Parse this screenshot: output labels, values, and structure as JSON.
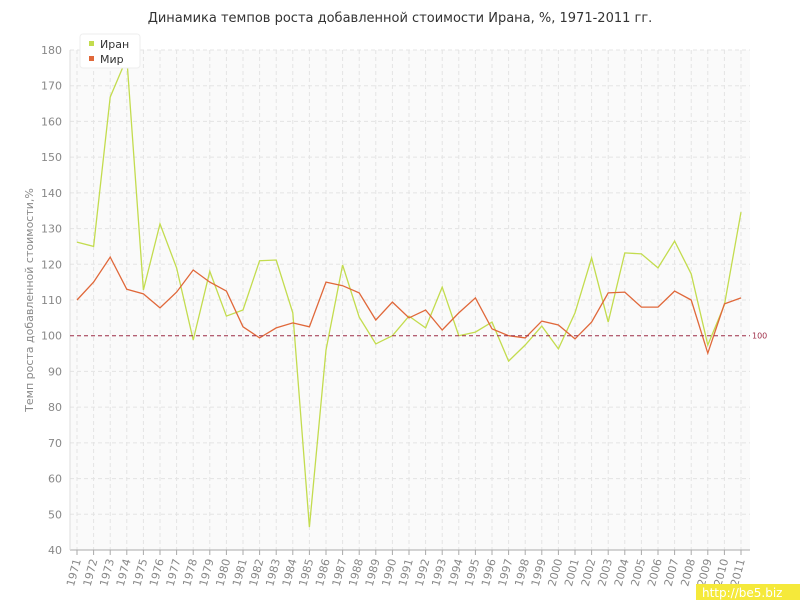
{
  "chart_data": {
    "type": "line",
    "title": "Динамика темпов роста добавленной стоимости Ирана, %, 1971-2011 гг.",
    "y_label": "Темп роста добавленной стоимости,%",
    "categories": [
      "1971",
      "1972",
      "1973",
      "1974",
      "1975",
      "1976",
      "1977",
      "1978",
      "1979",
      "1980",
      "1981",
      "1982",
      "1983",
      "1984",
      "1985",
      "1986",
      "1987",
      "1988",
      "1989",
      "1990",
      "1991",
      "1992",
      "1993",
      "1994",
      "1995",
      "1996",
      "1997",
      "1998",
      "1999",
      "2000",
      "2001",
      "2002",
      "2003",
      "2004",
      "2005",
      "2006",
      "2007",
      "2008",
      "2009",
      "2010",
      "2011"
    ],
    "series": [
      {
        "name": "Иран",
        "color": "#c3dc4e",
        "values": [
          126.2,
          125,
          166.8,
          177.8,
          112.8,
          131.3,
          119,
          98.8,
          118,
          105.5,
          107.2,
          121,
          121.2,
          106.4,
          46.4,
          96,
          119.8,
          105.2,
          97.7,
          100,
          105.5,
          102.2,
          113.6,
          100,
          101,
          103.8,
          92.9,
          97.4,
          102.7,
          96.3,
          106.4,
          121.8,
          103.8,
          123.2,
          122.9,
          119,
          126.5,
          117.3,
          97.4,
          108.6,
          134.6
        ]
      },
      {
        "name": "Мир",
        "color": "#e0683a",
        "values": [
          110,
          115,
          122,
          113,
          111.7,
          107.8,
          112.2,
          118.4,
          115,
          112.5,
          102.5,
          99.4,
          102.2,
          103.6,
          102.5,
          115,
          114,
          112,
          104.4,
          109.4,
          105,
          107.2,
          101.6,
          106.4,
          110.6,
          101.9,
          100,
          99.4,
          104.1,
          103,
          99.1,
          103.8,
          112,
          112.2,
          108,
          108,
          112.5,
          110,
          95.1,
          108.9,
          110.6
        ]
      }
    ],
    "ylim": [
      40,
      180
    ],
    "yticks": [
      40,
      50,
      60,
      70,
      80,
      90,
      100,
      110,
      120,
      130,
      140,
      150,
      160,
      170,
      180
    ],
    "grid": true,
    "legend": "top-left",
    "reference_line": 100,
    "reference_color": "#a0304a",
    "watermark": "http://be5.biz"
  }
}
